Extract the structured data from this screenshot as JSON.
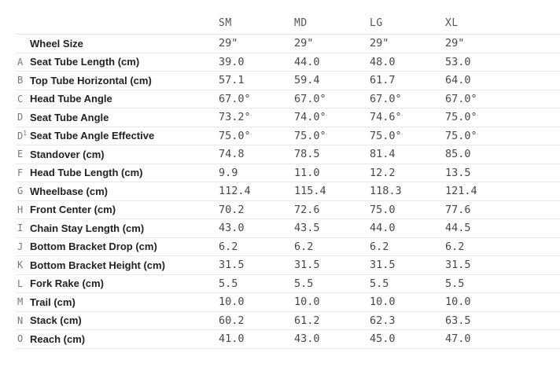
{
  "geometry_table": {
    "columns": [
      "SM",
      "MD",
      "LG",
      "XL"
    ],
    "rows": [
      {
        "letter": "",
        "sup": "",
        "label": "Wheel Size",
        "values": [
          "29\"",
          "29\"",
          "29\"",
          "29\""
        ]
      },
      {
        "letter": "A",
        "sup": "",
        "label": "Seat Tube Length (cm)",
        "values": [
          "39.0",
          "44.0",
          "48.0",
          "53.0"
        ]
      },
      {
        "letter": "B",
        "sup": "",
        "label": "Top Tube Horizontal (cm)",
        "values": [
          "57.1",
          "59.4",
          "61.7",
          "64.0"
        ]
      },
      {
        "letter": "C",
        "sup": "",
        "label": "Head Tube Angle",
        "values": [
          "67.0°",
          "67.0°",
          "67.0°",
          "67.0°"
        ]
      },
      {
        "letter": "D",
        "sup": "",
        "label": "Seat Tube Angle",
        "values": [
          "73.2°",
          "74.0°",
          "74.6°",
          "75.0°"
        ]
      },
      {
        "letter": "D",
        "sup": "1",
        "label": "Seat Tube Angle Effective",
        "values": [
          "75.0°",
          "75.0°",
          "75.0°",
          "75.0°"
        ]
      },
      {
        "letter": "E",
        "sup": "",
        "label": "Standover (cm)",
        "values": [
          "74.8",
          "78.5",
          "81.4",
          "85.0"
        ]
      },
      {
        "letter": "F",
        "sup": "",
        "label": "Head Tube Length (cm)",
        "values": [
          "9.9",
          "11.0",
          "12.2",
          "13.5"
        ]
      },
      {
        "letter": "G",
        "sup": "",
        "label": "Wheelbase (cm)",
        "values": [
          "112.4",
          "115.4",
          "118.3",
          "121.4"
        ]
      },
      {
        "letter": "H",
        "sup": "",
        "label": "Front Center (cm)",
        "values": [
          "70.2",
          "72.6",
          "75.0",
          "77.6"
        ]
      },
      {
        "letter": "I",
        "sup": "",
        "label": "Chain Stay Length (cm)",
        "values": [
          "43.0",
          "43.5",
          "44.0",
          "44.5"
        ]
      },
      {
        "letter": "J",
        "sup": "",
        "label": "Bottom Bracket Drop (cm)",
        "values": [
          "6.2",
          "6.2",
          "6.2",
          "6.2"
        ]
      },
      {
        "letter": "K",
        "sup": "",
        "label": "Bottom Bracket Height (cm)",
        "values": [
          "31.5",
          "31.5",
          "31.5",
          "31.5"
        ]
      },
      {
        "letter": "L",
        "sup": "",
        "label": "Fork Rake (cm)",
        "values": [
          "5.5",
          "5.5",
          "5.5",
          "5.5"
        ]
      },
      {
        "letter": "M",
        "sup": "",
        "label": "Trail (cm)",
        "values": [
          "10.0",
          "10.0",
          "10.0",
          "10.0"
        ]
      },
      {
        "letter": "N",
        "sup": "",
        "label": "Stack (cm)",
        "values": [
          "60.2",
          "61.2",
          "62.3",
          "63.5"
        ]
      },
      {
        "letter": "O",
        "sup": "",
        "label": "Reach (cm)",
        "values": [
          "41.0",
          "43.0",
          "45.0",
          "47.0"
        ]
      }
    ],
    "colors": {
      "background": "#ffffff",
      "label_text": "#222222",
      "value_text": "#474747",
      "letter_text": "#787878",
      "header_text": "#555555",
      "divider": "#e9e9e9"
    }
  }
}
